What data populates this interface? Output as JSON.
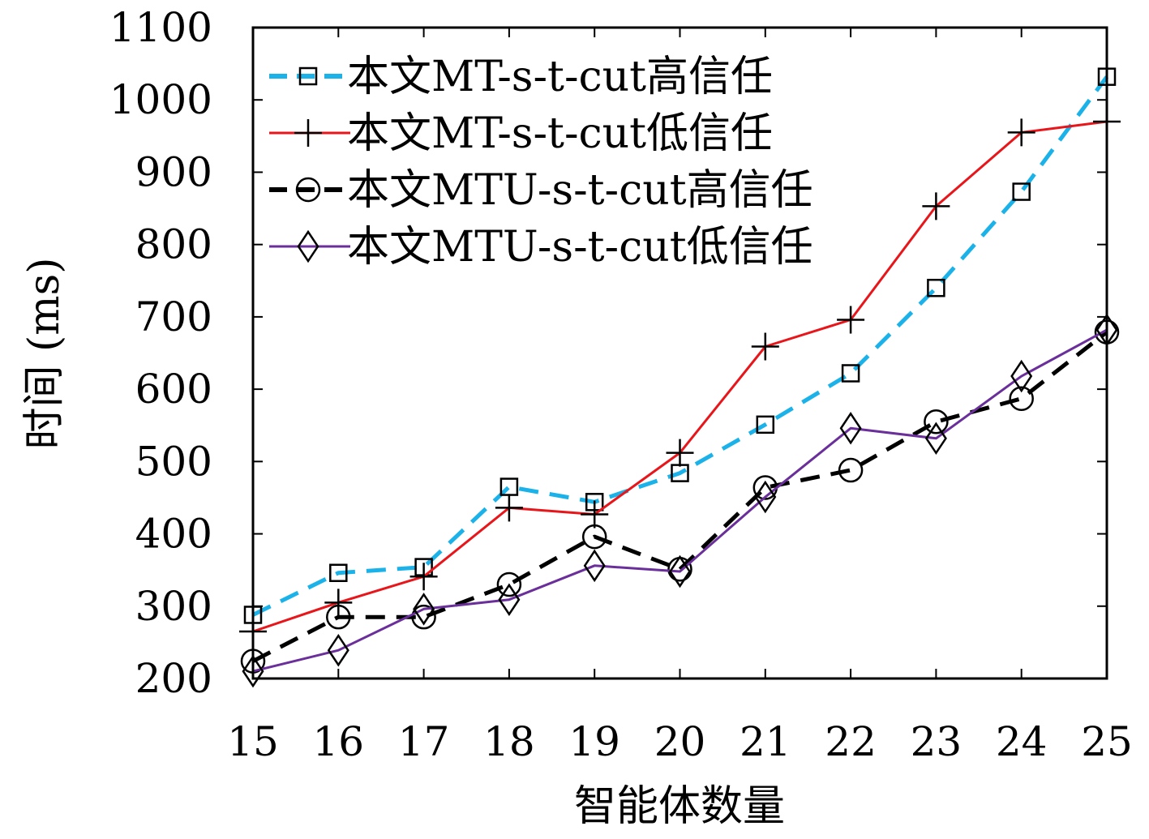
{
  "chart_data": {
    "type": "line",
    "xlabel": "智能体数量",
    "ylabel": "时间 (ms)",
    "x": [
      15,
      16,
      17,
      18,
      19,
      20,
      21,
      22,
      23,
      24,
      25
    ],
    "xlim": [
      15,
      25
    ],
    "ylim": [
      200,
      1100
    ],
    "yticks": [
      200,
      300,
      400,
      500,
      600,
      700,
      800,
      900,
      1000,
      1100
    ],
    "grid": false,
    "legend_position": "top-left",
    "series": [
      {
        "name": "本文MT-s-t-cut高信任",
        "color": "#1ab2e8",
        "line_style": "dashed",
        "marker": "square",
        "values": [
          288,
          346,
          354,
          465,
          444,
          484,
          551,
          622,
          740,
          873,
          1032
        ]
      },
      {
        "name": "本文MT-s-t-cut低信任",
        "color": "#e8161b",
        "line_style": "solid",
        "marker": "plus",
        "values": [
          265,
          305,
          341,
          436,
          427,
          512,
          659,
          696,
          853,
          955,
          970
        ]
      },
      {
        "name": "本文MTU-s-t-cut高信任",
        "color": "#000000",
        "line_style": "dashed",
        "marker": "circle",
        "values": [
          224,
          285,
          285,
          330,
          396,
          351,
          464,
          488,
          555,
          587,
          679
        ]
      },
      {
        "name": "本文MTU-s-t-cut低信任",
        "color": "#6a2f9a",
        "line_style": "solid",
        "marker": "diamond",
        "values": [
          210,
          239,
          296,
          309,
          356,
          348,
          451,
          546,
          532,
          618,
          682
        ]
      }
    ]
  }
}
